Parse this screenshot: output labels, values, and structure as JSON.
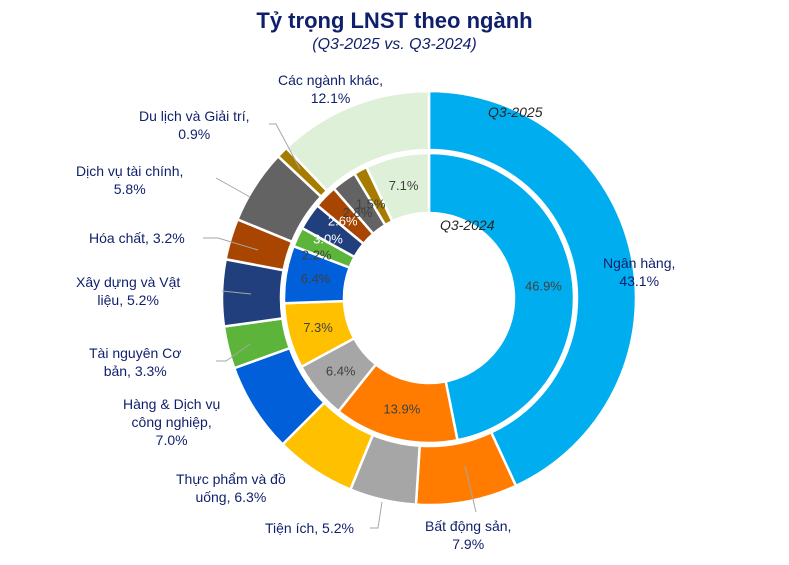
{
  "header": {
    "title": "Tỷ trọng LNST theo ngành",
    "subtitle": "(Q3-2025 vs. Q3-2024)"
  },
  "ring_labels": {
    "outer": "Q3-2025",
    "inner": "Q3-2024"
  },
  "chart_data": {
    "type": "pie",
    "subtype": "nested-donut",
    "title": "Tỷ trọng LNST theo ngành",
    "subtitle": "(Q3-2025 vs. Q3-2024)",
    "unit": "%",
    "categories": [
      "Ngân hàng",
      "Bất động sản",
      "Tiện ích",
      "Thực phẩm và đồ uống",
      "Hàng & Dịch vụ công nghiệp",
      "Tài nguyên Cơ bản",
      "Xây dựng và Vật liệu",
      "Hóa chất",
      "Dịch vụ tài chính",
      "Du lịch và Giải trí",
      "Các ngành khác"
    ],
    "colors": [
      "#00AEEF",
      "#FF7C00",
      "#A6A6A6",
      "#FFC000",
      "#005FD9",
      "#5DB43B",
      "#213F7C",
      "#A84500",
      "#636363",
      "#A57C00",
      "#DFF0D8"
    ],
    "series": [
      {
        "name": "Q3-2025",
        "ring": "outer",
        "values": [
          43.1,
          7.9,
          5.2,
          6.3,
          7.0,
          3.3,
          5.2,
          3.2,
          5.8,
          0.9,
          12.1
        ]
      },
      {
        "name": "Q3-2024",
        "ring": "inner",
        "values": [
          46.9,
          13.9,
          6.4,
          7.3,
          6.4,
          2.2,
          3.0,
          2.6,
          2.8,
          1.5,
          7.1
        ]
      }
    ],
    "start_angle": "12 o'clock, clockwise",
    "legend": "none (data labels)"
  },
  "outer_labels": [
    {
      "text1": "Ngân hàng,",
      "text2": "43.1%"
    },
    {
      "text1": "Bất động sản,",
      "text2": "7.9%"
    },
    {
      "text1": "Tiện ích, 5.2%",
      "text2": ""
    },
    {
      "text1": "Thực phẩm và đồ",
      "text2": "uống, 6.3%"
    },
    {
      "text1": "Hàng & Dịch vụ",
      "text2": "công nghiệp,",
      "text3": "7.0%"
    },
    {
      "text1": "Tài nguyên Cơ",
      "text2": "bản, 3.3%"
    },
    {
      "text1": "Xây dựng và Vật",
      "text2": "liệu, 5.2%"
    },
    {
      "text1": "Hóa chất, 3.2%",
      "text2": ""
    },
    {
      "text1": "Dịch vụ tài chính,",
      "text2": "5.8%"
    },
    {
      "text1": "Du lịch và Giải trí,",
      "text2": "0.9%"
    },
    {
      "text1": "Các ngành khác,",
      "text2": "12.1%"
    }
  ],
  "inner_labels": [
    "46.9%",
    "13.9%",
    "6.4%",
    "7.3%",
    "6.4%",
    "2.2%",
    "3.0%",
    "2.6%",
    "2.8%",
    "1.5%",
    "7.1%"
  ]
}
